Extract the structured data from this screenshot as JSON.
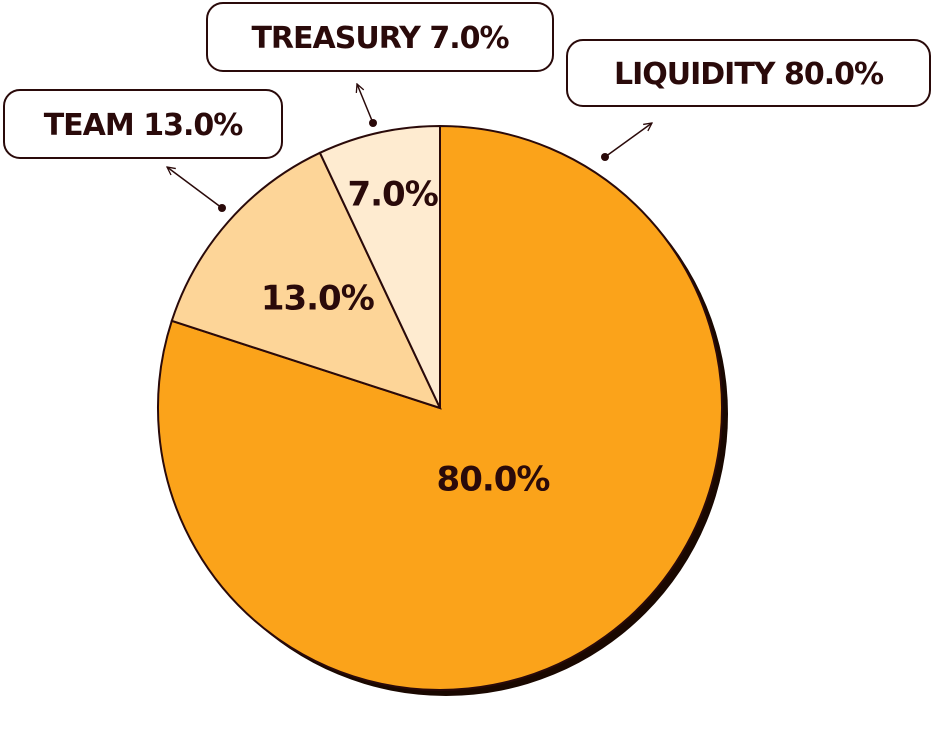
{
  "chart_data": {
    "type": "pie",
    "categories": [
      "Liquidity",
      "Team",
      "Treasury"
    ],
    "values": [
      80.0,
      13.0,
      7.0
    ],
    "value_labels": [
      "80.0%",
      "13.0%",
      "7.0%"
    ],
    "colors": [
      "#fba31a",
      "#fdd598",
      "#feebd0"
    ]
  }
}
